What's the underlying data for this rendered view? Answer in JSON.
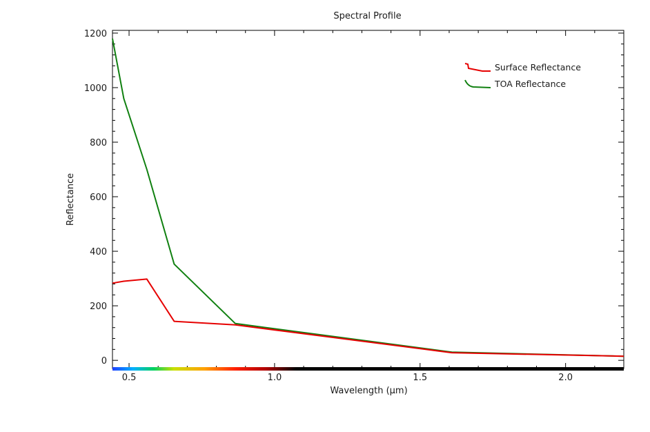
{
  "chart_data": {
    "type": "line",
    "title": "Spectral Profile",
    "xlabel": "Wavelength (μm)",
    "ylabel": "Reflectance",
    "xlim": [
      0.443,
      2.2
    ],
    "ylim": [
      -30,
      1210
    ],
    "x_ticks": [
      0.5,
      1.0,
      1.5,
      2.0
    ],
    "x_tick_labels": [
      "0.5",
      "1.0",
      "1.5",
      "2.0"
    ],
    "y_ticks": [
      0,
      200,
      400,
      600,
      800,
      1000,
      1200
    ],
    "y_tick_labels": [
      "0",
      "200",
      "400",
      "600",
      "800",
      "1000",
      "1200"
    ],
    "grid": false,
    "legend_position": "top-right",
    "series": [
      {
        "name": "Surface Reflectance",
        "color": "#e60000",
        "x": [
          0.443,
          0.482,
          0.561,
          0.655,
          0.865,
          1.609,
          2.2
        ],
        "y": [
          283,
          290,
          298,
          143,
          130,
          28,
          15
        ]
      },
      {
        "name": "TOA Reflectance",
        "color": "#108010",
        "x": [
          0.443,
          0.482,
          0.561,
          0.655,
          0.865,
          1.609,
          2.2
        ],
        "y": [
          1180,
          960,
          700,
          353,
          135,
          30,
          15
        ]
      }
    ],
    "spectrum_bar": {
      "colors": [
        "#1f3fff",
        "#00b0ff",
        "#00d060",
        "#c8e000",
        "#ffa000",
        "#ff2000",
        "#b00000",
        "#000000"
      ]
    }
  }
}
